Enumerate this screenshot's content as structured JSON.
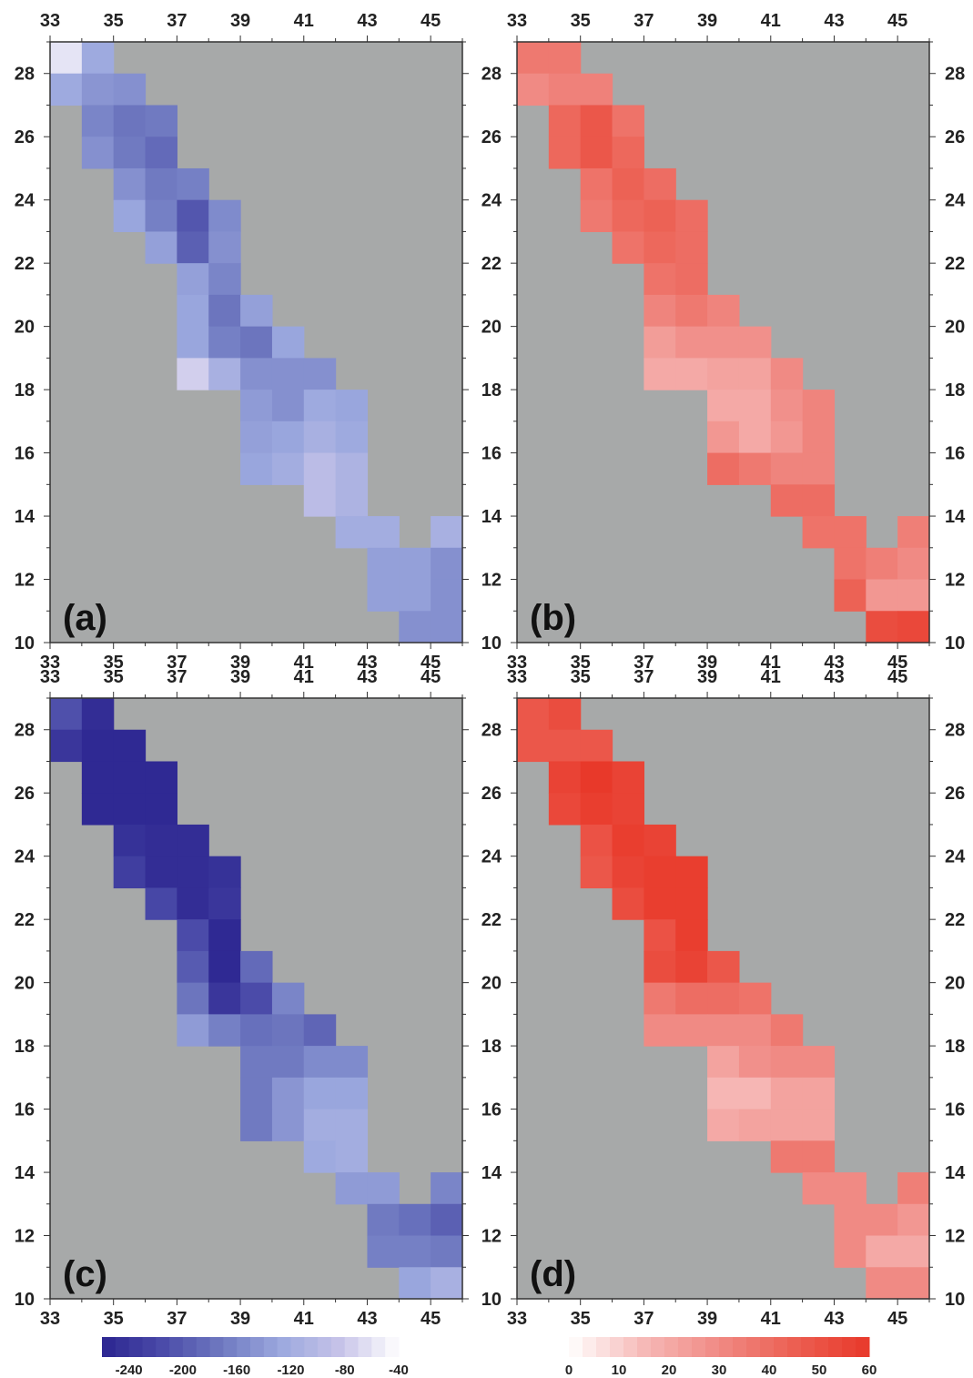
{
  "figure": {
    "background": "#a7a9a9",
    "frame_color": "#333333",
    "lon_ticks": [
      33,
      35,
      37,
      39,
      41,
      43,
      45
    ],
    "lat_ticks": [
      10,
      12,
      14,
      16,
      18,
      20,
      22,
      24,
      26,
      28
    ],
    "lon_range": [
      33,
      46
    ],
    "lat_range": [
      10,
      29
    ]
  },
  "panels": [
    {
      "id": "a",
      "label": "(a)",
      "colorbar": "blue",
      "ylabels": "left",
      "cells": [
        [
          33,
          28,
          -60
        ],
        [
          34,
          28,
          -125
        ],
        [
          33,
          27,
          -125
        ],
        [
          34,
          27,
          -145
        ],
        [
          35,
          27,
          -150
        ],
        [
          34,
          26,
          -160
        ],
        [
          35,
          26,
          -175
        ],
        [
          36,
          26,
          -170
        ],
        [
          34,
          25,
          -150
        ],
        [
          35,
          25,
          -170
        ],
        [
          36,
          25,
          -185
        ],
        [
          35,
          24,
          -150
        ],
        [
          36,
          24,
          -170
        ],
        [
          37,
          24,
          -165
        ],
        [
          35,
          23,
          -130
        ],
        [
          36,
          23,
          -165
        ],
        [
          37,
          23,
          -205
        ],
        [
          38,
          23,
          -155
        ],
        [
          36,
          22,
          -135
        ],
        [
          37,
          22,
          -195
        ],
        [
          38,
          22,
          -150
        ],
        [
          37,
          21,
          -135
        ],
        [
          38,
          21,
          -160
        ],
        [
          37,
          20,
          -130
        ],
        [
          38,
          20,
          -175
        ],
        [
          39,
          20,
          -135
        ],
        [
          37,
          19,
          -130
        ],
        [
          38,
          19,
          -165
        ],
        [
          39,
          19,
          -175
        ],
        [
          40,
          19,
          -130
        ],
        [
          37,
          18,
          -75
        ],
        [
          38,
          18,
          -115
        ],
        [
          39,
          18,
          -150
        ],
        [
          40,
          18,
          -150
        ],
        [
          41,
          18,
          -150
        ],
        [
          39,
          17,
          -140
        ],
        [
          40,
          17,
          -150
        ],
        [
          41,
          17,
          -125
        ],
        [
          42,
          17,
          -130
        ],
        [
          39,
          16,
          -135
        ],
        [
          40,
          16,
          -130
        ],
        [
          41,
          16,
          -115
        ],
        [
          42,
          16,
          -125
        ],
        [
          39,
          15,
          -130
        ],
        [
          40,
          15,
          -120
        ],
        [
          41,
          15,
          -95
        ],
        [
          42,
          15,
          -110
        ],
        [
          41,
          14,
          -95
        ],
        [
          42,
          14,
          -110
        ],
        [
          42,
          13,
          -120
        ],
        [
          43,
          13,
          -120
        ],
        [
          45,
          13,
          -115
        ],
        [
          43,
          12,
          -135
        ],
        [
          44,
          12,
          -135
        ],
        [
          45,
          12,
          -150
        ],
        [
          43,
          11,
          -135
        ],
        [
          44,
          11,
          -135
        ],
        [
          45,
          11,
          -150
        ],
        [
          44,
          10,
          -150
        ],
        [
          45,
          10,
          -150
        ]
      ]
    },
    {
      "id": "b",
      "label": "(b)",
      "colorbar": "red",
      "ylabels": "both",
      "cells": [
        [
          33,
          28,
          36
        ],
        [
          34,
          28,
          36
        ],
        [
          33,
          27,
          30
        ],
        [
          34,
          27,
          33
        ],
        [
          35,
          27,
          33
        ],
        [
          34,
          26,
          42
        ],
        [
          35,
          26,
          48
        ],
        [
          36,
          26,
          38
        ],
        [
          34,
          25,
          42
        ],
        [
          35,
          25,
          48
        ],
        [
          36,
          25,
          42
        ],
        [
          35,
          24,
          38
        ],
        [
          36,
          24,
          44
        ],
        [
          37,
          24,
          40
        ],
        [
          35,
          23,
          36
        ],
        [
          36,
          23,
          42
        ],
        [
          37,
          23,
          44
        ],
        [
          38,
          23,
          40
        ],
        [
          36,
          22,
          38
        ],
        [
          37,
          22,
          42
        ],
        [
          38,
          22,
          40
        ],
        [
          37,
          21,
          38
        ],
        [
          38,
          21,
          40
        ],
        [
          37,
          20,
          32
        ],
        [
          38,
          20,
          36
        ],
        [
          39,
          20,
          32
        ],
        [
          37,
          19,
          24
        ],
        [
          38,
          19,
          28
        ],
        [
          39,
          19,
          28
        ],
        [
          40,
          19,
          28
        ],
        [
          37,
          18,
          20
        ],
        [
          38,
          18,
          20
        ],
        [
          39,
          18,
          22
        ],
        [
          40,
          18,
          22
        ],
        [
          41,
          18,
          30
        ],
        [
          39,
          17,
          20
        ],
        [
          40,
          17,
          20
        ],
        [
          41,
          17,
          28
        ],
        [
          42,
          17,
          32
        ],
        [
          39,
          16,
          26
        ],
        [
          40,
          16,
          20
        ],
        [
          41,
          16,
          26
        ],
        [
          42,
          16,
          32
        ],
        [
          39,
          15,
          40
        ],
        [
          40,
          15,
          36
        ],
        [
          41,
          15,
          32
        ],
        [
          42,
          15,
          32
        ],
        [
          41,
          14,
          40
        ],
        [
          42,
          14,
          40
        ],
        [
          42,
          13,
          38
        ],
        [
          43,
          13,
          38
        ],
        [
          45,
          13,
          34
        ],
        [
          43,
          12,
          38
        ],
        [
          44,
          12,
          34
        ],
        [
          45,
          12,
          30
        ],
        [
          43,
          11,
          44
        ],
        [
          44,
          11,
          26
        ],
        [
          45,
          11,
          26
        ],
        [
          44,
          10,
          52
        ],
        [
          45,
          10,
          54
        ]
      ]
    },
    {
      "id": "c",
      "label": "(c)",
      "colorbar": "blue",
      "ylabels": "left",
      "cells": [
        [
          33,
          28,
          -210
        ],
        [
          34,
          28,
          -250
        ],
        [
          33,
          27,
          -240
        ],
        [
          34,
          27,
          -255
        ],
        [
          35,
          27,
          -255
        ],
        [
          34,
          26,
          -255
        ],
        [
          35,
          26,
          -255
        ],
        [
          36,
          26,
          -255
        ],
        [
          34,
          25,
          -255
        ],
        [
          35,
          25,
          -255
        ],
        [
          36,
          25,
          -255
        ],
        [
          35,
          24,
          -245
        ],
        [
          36,
          24,
          -250
        ],
        [
          37,
          24,
          -250
        ],
        [
          35,
          23,
          -230
        ],
        [
          36,
          23,
          -250
        ],
        [
          37,
          23,
          -250
        ],
        [
          38,
          23,
          -245
        ],
        [
          36,
          22,
          -220
        ],
        [
          37,
          22,
          -250
        ],
        [
          38,
          22,
          -240
        ],
        [
          37,
          21,
          -215
        ],
        [
          38,
          21,
          -255
        ],
        [
          37,
          20,
          -200
        ],
        [
          38,
          20,
          -255
        ],
        [
          39,
          20,
          -185
        ],
        [
          37,
          19,
          -175
        ],
        [
          38,
          19,
          -240
        ],
        [
          39,
          19,
          -215
        ],
        [
          40,
          19,
          -160
        ],
        [
          37,
          18,
          -140
        ],
        [
          38,
          18,
          -165
        ],
        [
          39,
          18,
          -180
        ],
        [
          40,
          18,
          -175
        ],
        [
          41,
          18,
          -190
        ],
        [
          39,
          17,
          -170
        ],
        [
          40,
          17,
          -170
        ],
        [
          41,
          17,
          -155
        ],
        [
          42,
          17,
          -155
        ],
        [
          39,
          16,
          -170
        ],
        [
          40,
          16,
          -145
        ],
        [
          41,
          16,
          -130
        ],
        [
          42,
          16,
          -130
        ],
        [
          39,
          15,
          -170
        ],
        [
          40,
          15,
          -145
        ],
        [
          41,
          15,
          -120
        ],
        [
          42,
          15,
          -120
        ],
        [
          41,
          14,
          -125
        ],
        [
          42,
          14,
          -120
        ],
        [
          42,
          13,
          -140
        ],
        [
          43,
          13,
          -140
        ],
        [
          45,
          13,
          -160
        ],
        [
          43,
          12,
          -170
        ],
        [
          44,
          12,
          -180
        ],
        [
          45,
          12,
          -195
        ],
        [
          43,
          11,
          -165
        ],
        [
          44,
          11,
          -165
        ],
        [
          45,
          11,
          -170
        ],
        [
          44,
          10,
          -130
        ],
        [
          45,
          10,
          -115
        ]
      ]
    },
    {
      "id": "d",
      "label": "(d)",
      "colorbar": "red",
      "ylabels": "both",
      "cells": [
        [
          33,
          28,
          48
        ],
        [
          34,
          28,
          52
        ],
        [
          33,
          27,
          48
        ],
        [
          34,
          27,
          48
        ],
        [
          35,
          27,
          48
        ],
        [
          34,
          26,
          56
        ],
        [
          35,
          26,
          60
        ],
        [
          36,
          26,
          56
        ],
        [
          34,
          25,
          54
        ],
        [
          35,
          25,
          58
        ],
        [
          36,
          25,
          56
        ],
        [
          35,
          24,
          50
        ],
        [
          36,
          24,
          58
        ],
        [
          37,
          24,
          56
        ],
        [
          35,
          23,
          48
        ],
        [
          36,
          23,
          56
        ],
        [
          37,
          23,
          58
        ],
        [
          38,
          23,
          58
        ],
        [
          36,
          22,
          52
        ],
        [
          37,
          22,
          58
        ],
        [
          38,
          22,
          58
        ],
        [
          37,
          21,
          50
        ],
        [
          38,
          21,
          58
        ],
        [
          37,
          20,
          52
        ],
        [
          38,
          20,
          56
        ],
        [
          39,
          20,
          48
        ],
        [
          37,
          19,
          36
        ],
        [
          38,
          19,
          40
        ],
        [
          39,
          19,
          40
        ],
        [
          40,
          19,
          38
        ],
        [
          37,
          18,
          30
        ],
        [
          38,
          18,
          30
        ],
        [
          39,
          18,
          30
        ],
        [
          40,
          18,
          30
        ],
        [
          41,
          18,
          36
        ],
        [
          39,
          17,
          22
        ],
        [
          40,
          17,
          28
        ],
        [
          41,
          17,
          30
        ],
        [
          42,
          17,
          30
        ],
        [
          39,
          16,
          16
        ],
        [
          40,
          16,
          16
        ],
        [
          41,
          16,
          22
        ],
        [
          42,
          16,
          22
        ],
        [
          39,
          15,
          20
        ],
        [
          40,
          15,
          22
        ],
        [
          41,
          15,
          22
        ],
        [
          42,
          15,
          22
        ],
        [
          41,
          14,
          36
        ],
        [
          42,
          14,
          36
        ],
        [
          42,
          13,
          30
        ],
        [
          43,
          13,
          30
        ],
        [
          45,
          13,
          34
        ],
        [
          43,
          12,
          30
        ],
        [
          44,
          12,
          30
        ],
        [
          45,
          12,
          26
        ],
        [
          43,
          11,
          30
        ],
        [
          44,
          11,
          20
        ],
        [
          45,
          11,
          20
        ],
        [
          44,
          10,
          30
        ],
        [
          45,
          10,
          30
        ]
      ]
    }
  ],
  "colorbars": {
    "blue": {
      "min": -260,
      "max": -40,
      "stops": [
        "#2c2590",
        "#4a4aa8",
        "#6e78c0",
        "#9ba8de",
        "#c6c3e8",
        "#ffffff"
      ],
      "labels": [
        "-240",
        "-200",
        "-160",
        "-120",
        "-80",
        "-40"
      ],
      "label_values": [
        -240,
        -200,
        -160,
        -120,
        -80,
        -40
      ]
    },
    "red": {
      "min": 0,
      "max": 60,
      "stops": [
        "#ffffff",
        "#f6b9b7",
        "#f08a84",
        "#ec5f52",
        "#e8392a"
      ],
      "labels": [
        "0",
        "10",
        "20",
        "30",
        "40",
        "50",
        "60"
      ],
      "label_values": [
        0,
        10,
        20,
        30,
        40,
        50,
        60
      ]
    }
  }
}
